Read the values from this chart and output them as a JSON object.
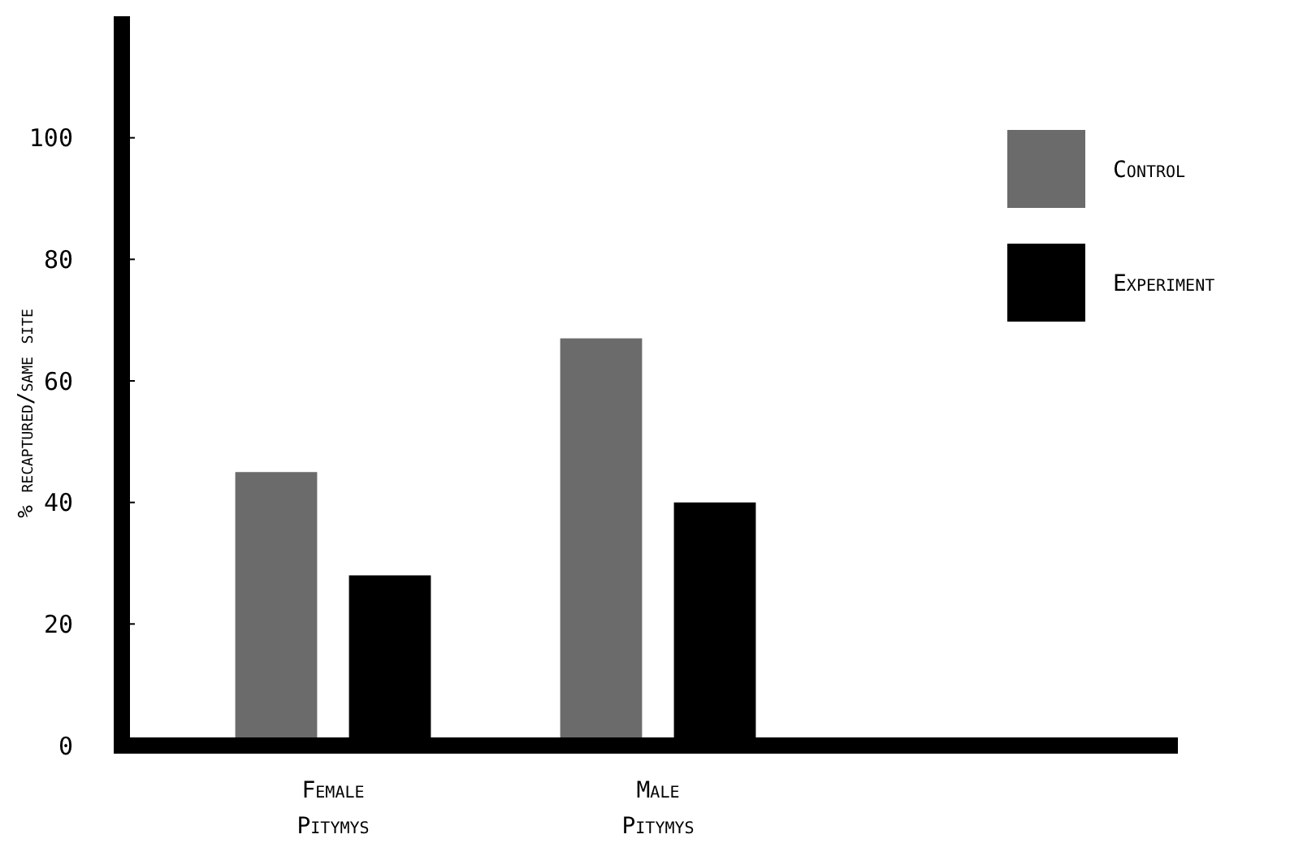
{
  "chart_data": {
    "type": "bar",
    "ylabel": "% recaptured/same site",
    "categories": [
      "Female\nPitymys",
      "Male\nPitymys"
    ],
    "series": [
      {
        "name": "Control",
        "color": "#6b6b6b",
        "values": [
          45,
          67
        ]
      },
      {
        "name": "Experiment",
        "color": "#000000",
        "values": [
          28,
          40
        ]
      }
    ],
    "ylim": [
      0,
      120
    ],
    "yticks": [
      0,
      20,
      40,
      60,
      80,
      100
    ],
    "grid": false,
    "legend": "top right"
  }
}
